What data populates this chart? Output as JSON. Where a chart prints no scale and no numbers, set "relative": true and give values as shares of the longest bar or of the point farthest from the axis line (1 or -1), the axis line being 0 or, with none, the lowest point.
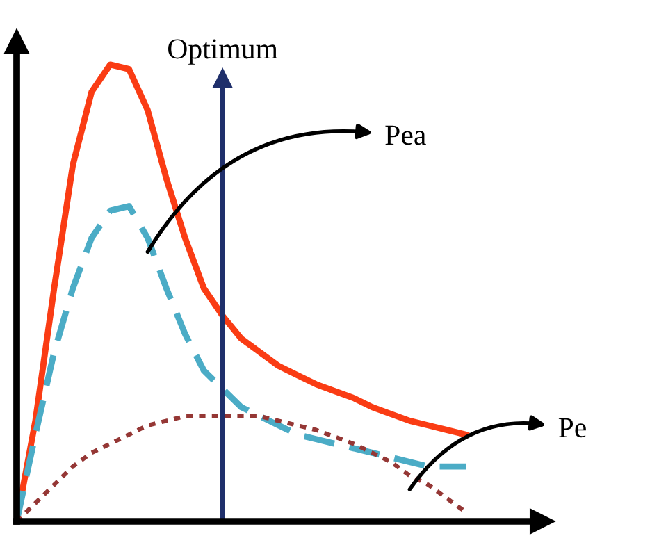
{
  "chart_data": {
    "type": "line",
    "relative": true,
    "legend": false,
    "categories": [
      null,
      null,
      null,
      null,
      null,
      null,
      null,
      null,
      null,
      null,
      null,
      null,
      null,
      null,
      null,
      null,
      null,
      null,
      null,
      null,
      null,
      null,
      null,
      null,
      null
    ],
    "series": [
      {
        "color": "#fa3c14",
        "line_style": "solid",
        "values": [
          0,
          0.22,
          0.51,
          0.78,
          0.94,
          1.0,
          0.99,
          0.9,
          0.75,
          0.62,
          0.51,
          0.45,
          0.4,
          0.37,
          0.34,
          0.32,
          0.3,
          0.285,
          0.27,
          0.25,
          0.235,
          0.22,
          0.21,
          0.2,
          0.19
        ]
      },
      {
        "color": "#4bacc6",
        "line_style": "dashed",
        "values": [
          0,
          0.19,
          0.37,
          0.51,
          0.62,
          0.68,
          0.69,
          0.62,
          0.51,
          0.41,
          0.33,
          0.29,
          0.25,
          0.23,
          0.21,
          0.19,
          0.18,
          0.17,
          0.16,
          0.15,
          0.14,
          0.13,
          0.12,
          0.12,
          0.12
        ]
      },
      {
        "color": "#953735",
        "line_style": "dotted",
        "values": [
          0,
          0.04,
          0.08,
          0.12,
          0.15,
          0.17,
          0.19,
          0.21,
          0.22,
          0.23,
          0.23,
          0.23,
          0.23,
          0.23,
          0.22,
          0.21,
          0.2,
          0.185,
          0.17,
          0.15,
          0.13,
          0.1,
          0.08,
          0.05,
          0.02
        ]
      }
    ],
    "annotations": [
      "Optimum",
      "Pea",
      "Pe"
    ]
  }
}
